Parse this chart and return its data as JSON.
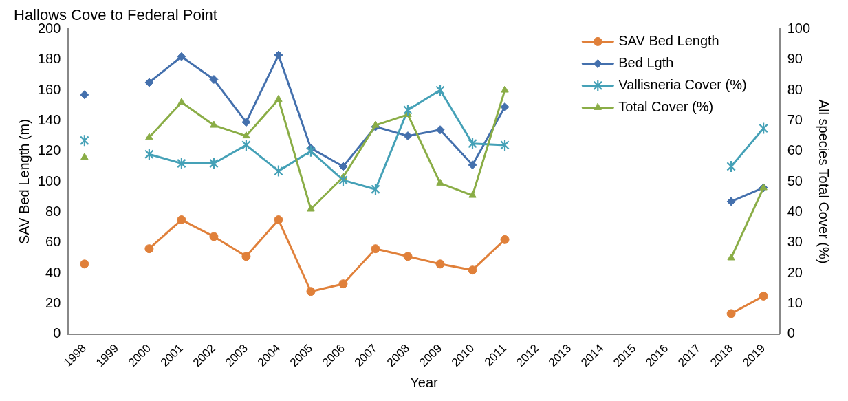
{
  "chart_data": {
    "type": "line",
    "title": "Hallows Cove to Federal Point",
    "xlabel": "Year",
    "ylabel": "SAV Bed Length (m)",
    "y2label": "All species Total Cover (%)",
    "categories": [
      "1998",
      "1999",
      "2000",
      "2001",
      "2002",
      "2003",
      "2004",
      "2005",
      "2006",
      "2007",
      "2008",
      "2009",
      "2010",
      "2011",
      "2012",
      "2013",
      "2014",
      "2015",
      "2016",
      "2017",
      "2018",
      "2019"
    ],
    "ylim": [
      0,
      200
    ],
    "yticks": [
      0,
      20,
      40,
      60,
      80,
      100,
      120,
      140,
      160,
      180,
      200
    ],
    "y2lim": [
      0,
      100
    ],
    "y2ticks": [
      0,
      10,
      20,
      30,
      40,
      50,
      60,
      70,
      80,
      90,
      100
    ],
    "grid": false,
    "legend": "top right",
    "series": [
      {
        "name": "SAV Bed Length",
        "color": "#e0803a",
        "marker": "circle",
        "values": [
          46,
          null,
          56,
          75,
          64,
          51,
          75,
          28,
          33,
          56,
          51,
          46,
          42,
          62,
          null,
          null,
          null,
          null,
          null,
          null,
          13.5,
          25
        ]
      },
      {
        "name": "Bed Lgth",
        "color": "#4470ad",
        "marker": "diamond",
        "axis": "y2",
        "values": [
          78.5,
          null,
          82.5,
          91,
          83.5,
          69.5,
          91.5,
          61,
          55,
          68,
          65,
          67,
          55.5,
          74.5,
          null,
          null,
          null,
          null,
          null,
          null,
          43.5,
          48
        ]
      },
      {
        "name": "Vallisneria Cover (%)",
        "color": "#45a1b7",
        "marker": "cross",
        "axis": "y2",
        "values": [
          63.5,
          null,
          59,
          56,
          56,
          62,
          53.5,
          60,
          50.5,
          47.5,
          73.5,
          80,
          62.5,
          62,
          null,
          null,
          null,
          null,
          null,
          null,
          55,
          67.5
        ]
      },
      {
        "name": "Total Cover (%)",
        "color": "#8aad46",
        "marker": "triangle",
        "axis": "y2",
        "values": [
          58,
          null,
          64.5,
          76,
          68.5,
          65,
          77,
          41,
          51.5,
          68.5,
          72,
          49.5,
          45.5,
          80,
          null,
          null,
          null,
          null,
          null,
          null,
          25,
          48
        ]
      }
    ]
  }
}
